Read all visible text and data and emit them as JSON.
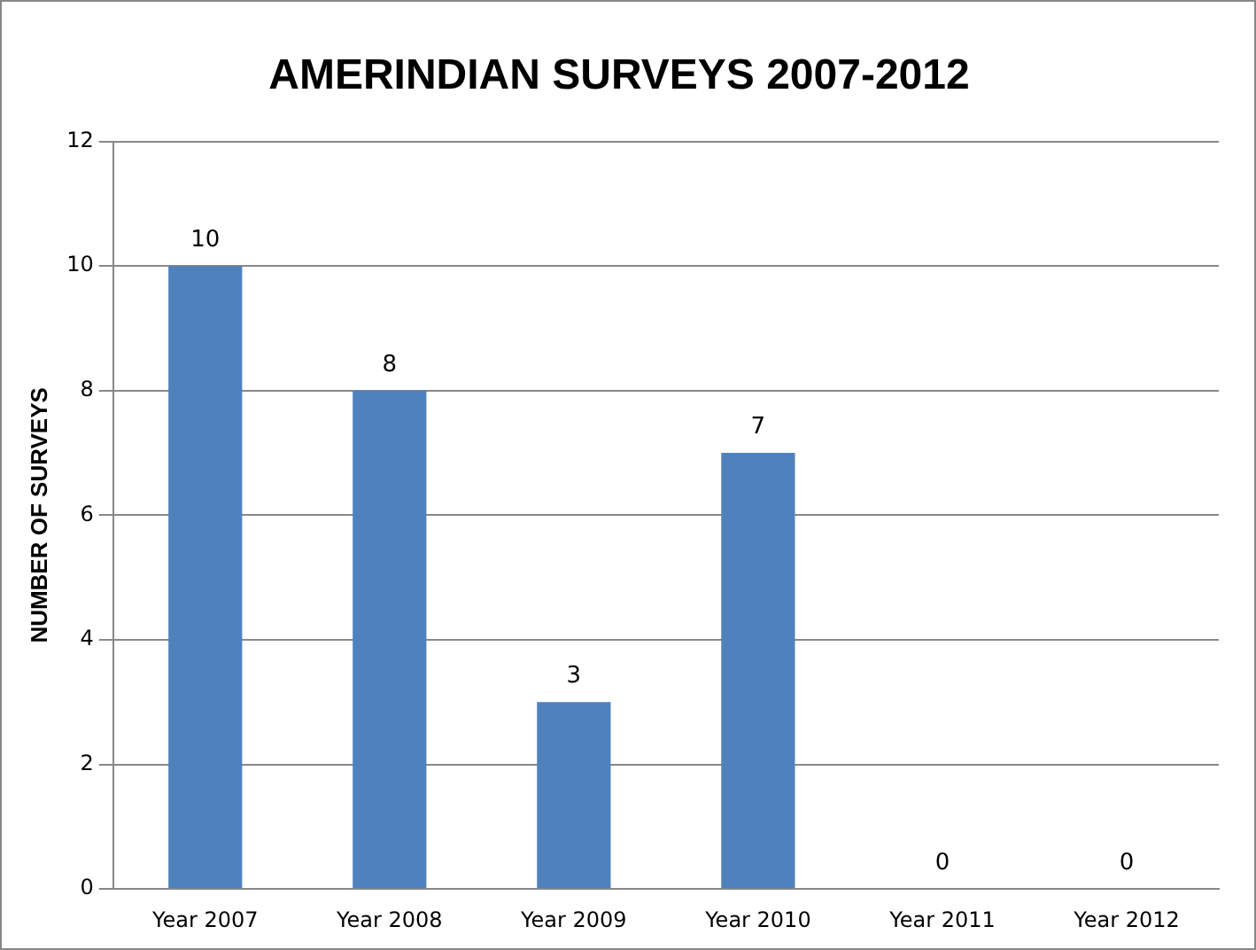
{
  "chart_data": {
    "type": "bar",
    "title": "AMERINDIAN SURVEYS 2007-2012",
    "ylabel": "NUMBER OF SURVEYS",
    "categories": [
      "Year 2007",
      "Year 2008",
      "Year 2009",
      "Year 2010",
      "Year 2011",
      "Year 2012"
    ],
    "values": [
      10,
      8,
      3,
      7,
      0,
      0
    ],
    "color": "#4f81bd",
    "ylim": [
      0,
      12
    ],
    "yticks": [
      0,
      2,
      4,
      6,
      8,
      10,
      12
    ],
    "grid": "y",
    "data_labels": true
  }
}
